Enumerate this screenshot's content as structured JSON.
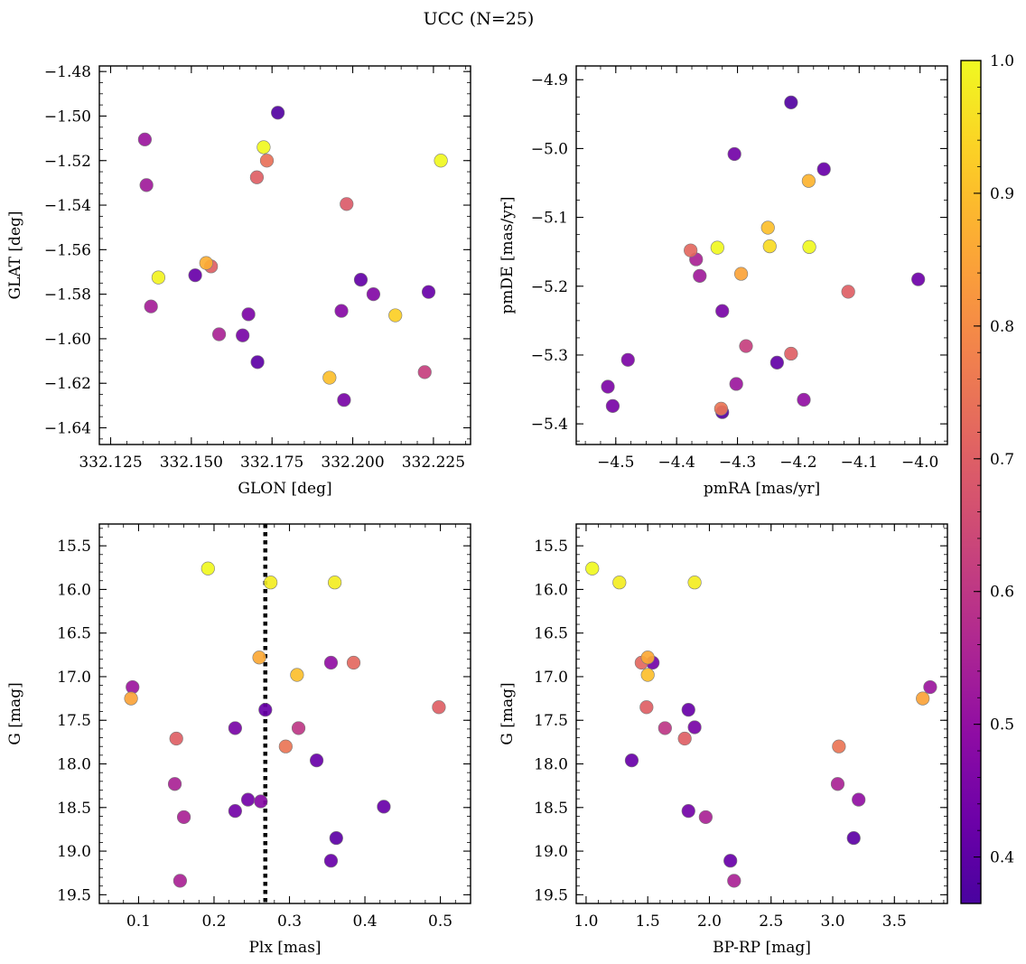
{
  "figure": {
    "title": "UCC (N=25)"
  },
  "chart_data": [
    {
      "type": "scatter",
      "xlabel": "GLON [deg]",
      "ylabel": "GLAT [deg]",
      "xlim": [
        332.1215,
        332.2365
      ],
      "ylim": [
        -1.6475,
        -1.4775
      ],
      "invert_y": false,
      "xticks": [
        332.125,
        332.15,
        332.175,
        332.2,
        332.225
      ],
      "xtick_labels": [
        "332.125",
        "332.150",
        "332.175",
        "332.200",
        "332.225"
      ],
      "xminor": 0.005,
      "yticks": [
        -1.64,
        -1.62,
        -1.6,
        -1.58,
        -1.56,
        -1.54,
        -1.52,
        -1.5,
        -1.48
      ],
      "ytick_labels": [
        "−1.64",
        "−1.62",
        "−1.60",
        "−1.58",
        "−1.56",
        "−1.54",
        "−1.52",
        "−1.50",
        "−1.48"
      ],
      "yminor": 0.005,
      "color_by": "probability",
      "x": [
        332.1768,
        332.2273,
        332.1724,
        332.1734,
        332.1703,
        332.1356,
        332.1981,
        332.1361,
        332.1398,
        332.1546,
        332.1512,
        332.1561,
        332.2025,
        332.1965,
        332.2064,
        332.2235,
        332.1677,
        332.1705,
        332.1375,
        332.1586,
        332.1659,
        332.2132,
        332.1928,
        332.1973,
        332.2223
      ],
      "y": [
        -1.4985,
        -1.52,
        -1.514,
        -1.52,
        -1.5275,
        -1.5105,
        -1.5395,
        -1.531,
        -1.5725,
        -1.566,
        -1.5715,
        -1.5675,
        -1.5735,
        -1.5875,
        -1.58,
        -1.579,
        -1.589,
        -1.6105,
        -1.5855,
        -1.598,
        -1.5985,
        -1.5895,
        -1.6175,
        -1.6275,
        -1.615
      ],
      "c": [
        0.38,
        1.0,
        1.0,
        0.74,
        0.7,
        0.52,
        0.69,
        0.53,
        0.99,
        0.87,
        0.42,
        0.7,
        0.41,
        0.48,
        0.47,
        0.42,
        0.46,
        0.4,
        0.54,
        0.55,
        0.45,
        0.93,
        0.9,
        0.45,
        0.62
      ]
    },
    {
      "type": "scatter",
      "xlabel": "pmRA [mas/yr]",
      "ylabel": "pmDE [mas/yr]",
      "xlim": [
        -4.565,
        -3.955
      ],
      "ylim": [
        -5.43,
        -4.88
      ],
      "invert_y": false,
      "xticks": [
        -4.5,
        -4.4,
        -4.3,
        -4.2,
        -4.1,
        -4.0
      ],
      "xtick_labels": [
        "−4.5",
        "−4.4",
        "−4.3",
        "−4.2",
        "−4.1",
        "−4.0"
      ],
      "xminor": 0.025,
      "yticks": [
        -5.4,
        -5.3,
        -5.2,
        -5.1,
        -5.0,
        -4.9
      ],
      "ytick_labels": [
        "−5.4",
        "−5.3",
        "−5.2",
        "−5.1",
        "−5.0",
        "−4.9"
      ],
      "yminor": 0.025,
      "color_by": "probability",
      "x": [
        -4.212,
        -4.305,
        -4.158,
        -4.183,
        -4.25,
        -4.247,
        -4.182,
        -4.333,
        -4.377,
        -4.368,
        -4.362,
        -4.294,
        -4.003,
        -4.118,
        -4.325,
        -4.286,
        -4.48,
        -4.212,
        -4.235,
        -4.513,
        -4.302,
        -4.505,
        -4.191,
        -4.327,
        -4.325
      ],
      "y": [
        -4.933,
        -5.008,
        -5.03,
        -5.047,
        -5.115,
        -5.142,
        -5.143,
        -5.144,
        -5.148,
        -5.161,
        -5.185,
        -5.182,
        -5.19,
        -5.208,
        -5.236,
        -5.287,
        -5.307,
        -5.298,
        -5.311,
        -5.346,
        -5.342,
        -5.374,
        -5.365,
        -5.378,
        -5.383
      ],
      "c": [
        0.38,
        0.44,
        0.42,
        0.88,
        0.9,
        0.95,
        1.0,
        1.0,
        0.72,
        0.55,
        0.53,
        0.85,
        0.43,
        0.7,
        0.45,
        0.62,
        0.46,
        0.7,
        0.41,
        0.46,
        0.52,
        0.45,
        0.5,
        0.75,
        0.38
      ]
    },
    {
      "type": "scatter",
      "xlabel": "Plx [mas]",
      "ylabel": "G [mag]",
      "xlim": [
        0.048,
        0.54
      ],
      "ylim": [
        19.6,
        15.25
      ],
      "invert_y": true,
      "vline": 0.268,
      "xticks": [
        0.1,
        0.2,
        0.3,
        0.4,
        0.5
      ],
      "xtick_labels": [
        "0.1",
        "0.2",
        "0.3",
        "0.4",
        "0.5"
      ],
      "xminor": 0.02,
      "yticks": [
        15.5,
        16.0,
        16.5,
        17.0,
        17.5,
        18.0,
        18.5,
        19.0,
        19.5
      ],
      "ytick_labels": [
        "15.5",
        "16.0",
        "16.5",
        "17.0",
        "17.5",
        "18.0",
        "18.5",
        "19.0",
        "19.5"
      ],
      "yminor": 0.1,
      "color_by": "probability",
      "x": [
        0.192,
        0.275,
        0.36,
        0.26,
        0.385,
        0.355,
        0.092,
        0.09,
        0.31,
        0.498,
        0.268,
        0.15,
        0.228,
        0.312,
        0.295,
        0.336,
        0.148,
        0.245,
        0.262,
        0.425,
        0.228,
        0.16,
        0.362,
        0.355,
        0.155
      ],
      "y": [
        15.76,
        15.92,
        15.92,
        16.78,
        16.84,
        16.84,
        17.12,
        17.25,
        16.98,
        17.35,
        17.38,
        17.71,
        17.59,
        17.59,
        17.8,
        17.96,
        18.23,
        18.41,
        18.43,
        18.49,
        18.54,
        18.61,
        18.85,
        19.11,
        19.34
      ],
      "c": [
        1.0,
        0.98,
        0.98,
        0.86,
        0.72,
        0.5,
        0.52,
        0.85,
        0.9,
        0.7,
        0.42,
        0.7,
        0.45,
        0.6,
        0.75,
        0.42,
        0.55,
        0.44,
        0.48,
        0.42,
        0.44,
        0.55,
        0.4,
        0.42,
        0.55
      ]
    },
    {
      "type": "scatter",
      "xlabel": "BP-RP [mag]",
      "ylabel": "G [mag]",
      "xlim": [
        0.92,
        3.93
      ],
      "ylim": [
        19.6,
        15.25
      ],
      "invert_y": true,
      "xticks": [
        1.0,
        1.5,
        2.0,
        2.5,
        3.0,
        3.5
      ],
      "xtick_labels": [
        "1.0",
        "1.5",
        "2.0",
        "2.5",
        "3.0",
        "3.5"
      ],
      "xminor": 0.1,
      "yticks": [
        15.5,
        16.0,
        16.5,
        17.0,
        17.5,
        18.0,
        18.5,
        19.0,
        19.5
      ],
      "ytick_labels": [
        "15.5",
        "16.0",
        "16.5",
        "17.0",
        "17.5",
        "18.0",
        "18.5",
        "19.0",
        "19.5"
      ],
      "yminor": 0.1,
      "color_by": "probability",
      "x": [
        1.05,
        1.27,
        1.88,
        1.5,
        1.45,
        1.54,
        1.5,
        3.79,
        3.73,
        1.49,
        1.83,
        1.88,
        1.64,
        1.8,
        3.05,
        1.37,
        3.04,
        3.21,
        1.83,
        1.97,
        3.17,
        2.17,
        2.2
      ],
      "y": [
        15.76,
        15.92,
        15.92,
        16.78,
        16.84,
        16.84,
        16.98,
        17.12,
        17.25,
        17.35,
        17.38,
        17.58,
        17.59,
        17.71,
        17.8,
        17.96,
        18.23,
        18.41,
        18.54,
        18.61,
        18.85,
        19.11,
        19.34
      ],
      "c": [
        1.0,
        0.98,
        0.98,
        0.86,
        0.72,
        0.44,
        0.9,
        0.52,
        0.85,
        0.7,
        0.42,
        0.45,
        0.6,
        0.7,
        0.75,
        0.42,
        0.55,
        0.5,
        0.44,
        0.55,
        0.4,
        0.42,
        0.55
      ]
    }
  ],
  "colorbar": {
    "cmap": "plasma",
    "range": [
      0.365,
      1.0
    ],
    "ticks": [
      0.4,
      0.5,
      0.6,
      0.7,
      0.8,
      0.9,
      1.0
    ],
    "tick_labels": [
      "0.4",
      "0.5",
      "0.6",
      "0.7",
      "0.8",
      "0.9",
      "1.0"
    ]
  }
}
